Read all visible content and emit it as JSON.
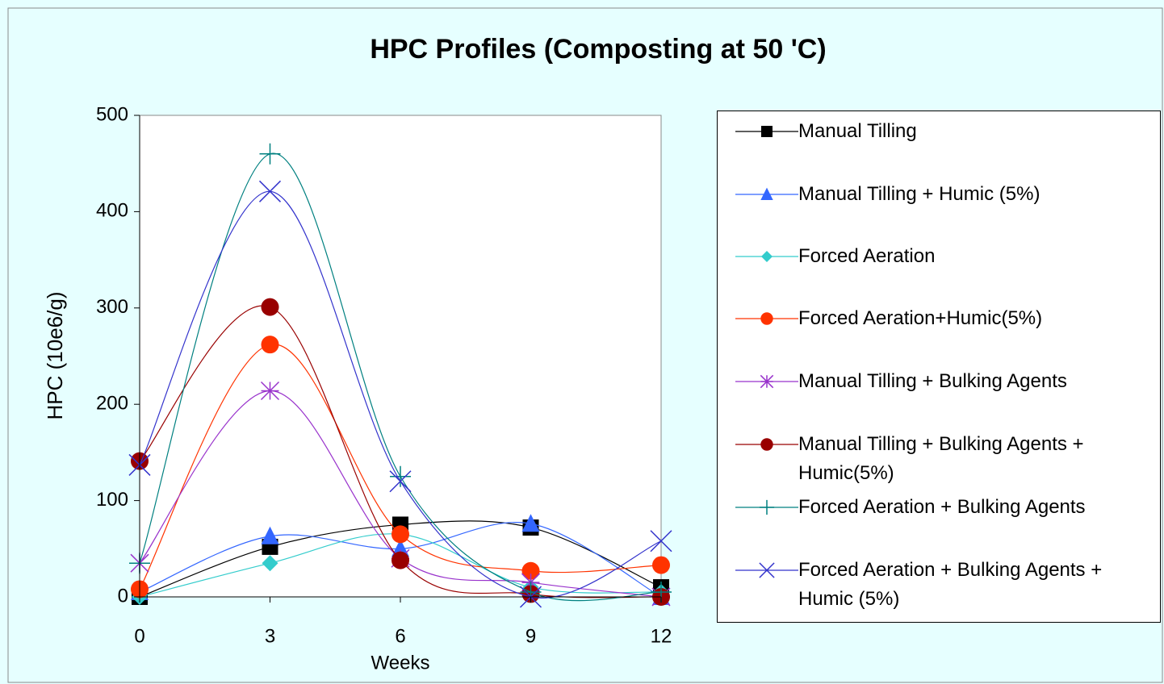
{
  "chart_data": {
    "type": "line",
    "title": "HPC Profiles (Composting at 50 'C)",
    "x_label": "Weeks",
    "y_label": "HPC (10e6/g)",
    "x": [
      0,
      3,
      6,
      9,
      12
    ],
    "xlim": [
      0,
      12
    ],
    "xticks": [
      0,
      3,
      6,
      9,
      12
    ],
    "ylim": [
      0,
      500
    ],
    "yticks": [
      0,
      100,
      200,
      300,
      400,
      500
    ],
    "smooth": true,
    "series": [
      {
        "name": "Manual Tilling",
        "color": "#000000",
        "marker": "square",
        "values": [
          0,
          52,
          75,
          72,
          10
        ]
      },
      {
        "name": "Manual Tilling + Humic (5%)",
        "color": "#3366ff",
        "marker": "triangle",
        "values": [
          5,
          63,
          50,
          76,
          0
        ]
      },
      {
        "name": "Forced Aeration",
        "color": "#33cccc",
        "marker": "diamond",
        "values": [
          0,
          35,
          65,
          10,
          5
        ]
      },
      {
        "name": "Forced Aeration+Humic(5%)",
        "color": "#ff3300",
        "marker": "circle",
        "values": [
          8,
          262,
          65,
          27,
          33
        ]
      },
      {
        "name": "Manual Tilling + Bulking Agents",
        "color": "#9933cc",
        "marker": "asterisk",
        "values": [
          35,
          214,
          40,
          15,
          0
        ]
      },
      {
        "name": "Manual Tilling + Bulking Agents + Humic(5%)",
        "color": "#990000",
        "marker": "circle",
        "values": [
          141,
          301,
          38,
          3,
          0
        ]
      },
      {
        "name": "Forced Aeration + Bulking Agents",
        "color": "#008080",
        "marker": "plus",
        "values": [
          35,
          460,
          125,
          5,
          5
        ]
      },
      {
        "name": "Forced Aeration + Bulking Agents + Humic (5%)",
        "color": "#3333cc",
        "marker": "x",
        "values": [
          137,
          421,
          120,
          0,
          58
        ]
      }
    ]
  }
}
